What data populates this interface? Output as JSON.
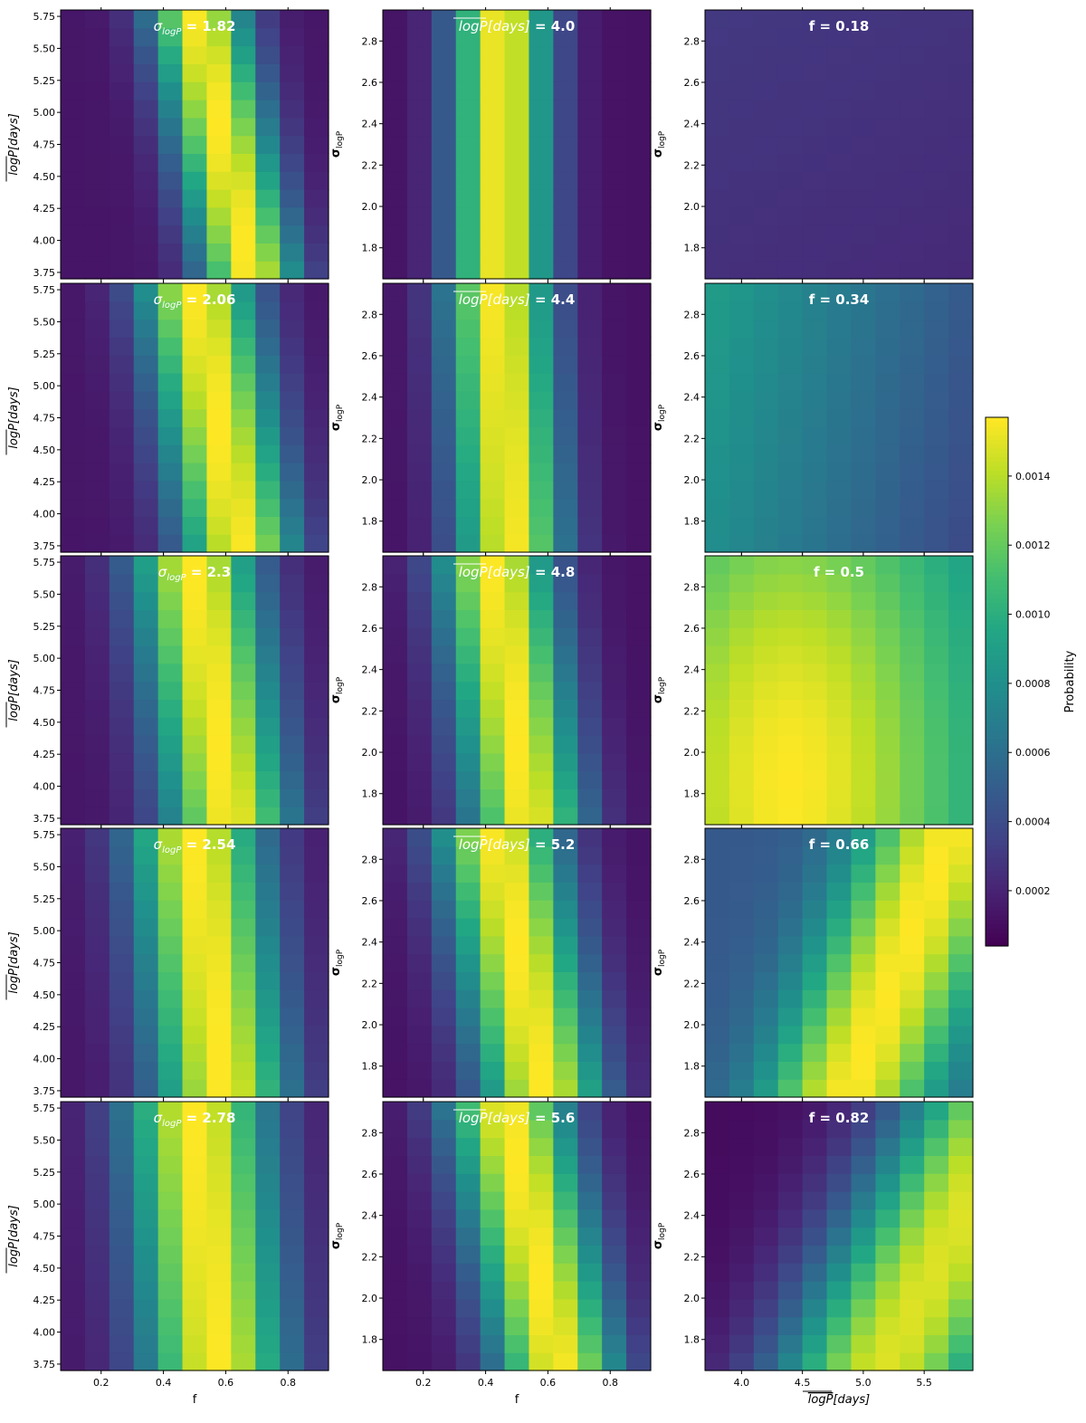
{
  "colorbar": {
    "label": "Probability",
    "vmin": 4e-05,
    "vmax": 0.00157,
    "ticks": [
      "0.0002",
      "0.0004",
      "0.0006",
      "0.0008",
      "0.0010",
      "0.0012",
      "0.0014"
    ],
    "colormap": "viridis"
  },
  "axis_text": {
    "f": "f",
    "sigma_base": "σ",
    "sigma_sub": "logP",
    "logp_bar": "logP",
    "logp_rest": "[days]"
  },
  "chart_data": [
    {
      "type": "heatmap",
      "column": 1,
      "row": 1,
      "title_sym": "σ",
      "title_sub": "logP",
      "title_rest": " = 1.82",
      "x_label": "f",
      "y_label": "logP[days]",
      "x_range": [
        0.07,
        0.93
      ],
      "y_range": [
        3.7,
        5.8
      ],
      "x_ticks": [
        "0.2",
        "0.4",
        "0.6",
        "0.8"
      ],
      "y_ticks": [
        "3.75",
        "4.00",
        "4.25",
        "4.50",
        "4.75",
        "5.00",
        "5.25",
        "5.50",
        "5.75"
      ],
      "pattern": {
        "mode": "band_f_logp",
        "s": 0.6,
        "w": 0.11,
        "slope": 0.3
      },
      "x_tick_labels_shown": false,
      "x_label_shown": false
    },
    {
      "type": "heatmap",
      "column": 1,
      "row": 2,
      "title_sym": "σ",
      "title_sub": "logP",
      "title_rest": " = 2.06",
      "x_label": "f",
      "y_label": "logP[days]",
      "x_range": [
        0.07,
        0.93
      ],
      "y_range": [
        3.7,
        5.8
      ],
      "x_ticks": [
        "0.2",
        "0.4",
        "0.6",
        "0.8"
      ],
      "y_ticks": [
        "3.75",
        "4.00",
        "4.25",
        "4.50",
        "4.75",
        "5.00",
        "5.25",
        "5.50",
        "5.75"
      ],
      "pattern": {
        "mode": "band_f_logp",
        "s": 0.58,
        "w": 0.13,
        "slope": 0.25
      },
      "x_tick_labels_shown": false,
      "x_label_shown": false
    },
    {
      "type": "heatmap",
      "column": 1,
      "row": 3,
      "title_sym": "σ",
      "title_sub": "logP",
      "title_rest": " = 2.3",
      "x_label": "f",
      "y_label": "logP[days]",
      "x_range": [
        0.07,
        0.93
      ],
      "y_range": [
        3.7,
        5.8
      ],
      "x_ticks": [
        "0.2",
        "0.4",
        "0.6",
        "0.8"
      ],
      "y_ticks": [
        "3.75",
        "4.00",
        "4.25",
        "4.50",
        "4.75",
        "5.00",
        "5.25",
        "5.50",
        "5.75"
      ],
      "pattern": {
        "mode": "band_f_logp",
        "s": 0.56,
        "w": 0.14,
        "slope": 0.2
      },
      "x_tick_labels_shown": false,
      "x_label_shown": false
    },
    {
      "type": "heatmap",
      "column": 1,
      "row": 4,
      "title_sym": "σ",
      "title_sub": "logP",
      "title_rest": " = 2.54",
      "x_label": "f",
      "y_label": "logP[days]",
      "x_range": [
        0.07,
        0.93
      ],
      "y_range": [
        3.7,
        5.8
      ],
      "x_ticks": [
        "0.2",
        "0.4",
        "0.6",
        "0.8"
      ],
      "y_ticks": [
        "3.75",
        "4.00",
        "4.25",
        "4.50",
        "4.75",
        "5.00",
        "5.25",
        "5.50",
        "5.75"
      ],
      "pattern": {
        "mode": "band_f_logp",
        "s": 0.55,
        "w": 0.15,
        "slope": 0.16
      },
      "x_tick_labels_shown": false,
      "x_label_shown": false
    },
    {
      "type": "heatmap",
      "column": 1,
      "row": 5,
      "title_sym": "σ",
      "title_sub": "logP",
      "title_rest": " = 2.78",
      "x_label": "f",
      "y_label": "logP[days]",
      "x_range": [
        0.07,
        0.93
      ],
      "y_range": [
        3.7,
        5.8
      ],
      "x_ticks": [
        "0.2",
        "0.4",
        "0.6",
        "0.8"
      ],
      "y_ticks": [
        "3.75",
        "4.00",
        "4.25",
        "4.50",
        "4.75",
        "5.00",
        "5.25",
        "5.50",
        "5.75"
      ],
      "pattern": {
        "mode": "band_f_logp",
        "s": 0.54,
        "w": 0.16,
        "slope": 0.12
      },
      "x_tick_labels_shown": true,
      "x_label_shown": true
    },
    {
      "type": "heatmap",
      "column": 2,
      "row": 1,
      "title_bar": "logP",
      "title_rest": "[days] = 4.0",
      "x_label": "f",
      "y_label": "σ logP",
      "x_range": [
        0.07,
        0.93
      ],
      "y_range": [
        1.65,
        2.95
      ],
      "x_ticks": [
        "0.2",
        "0.4",
        "0.6",
        "0.8"
      ],
      "y_ticks": [
        "1.8",
        "2.0",
        "2.2",
        "2.4",
        "2.6",
        "2.8"
      ],
      "pattern": {
        "mode": "band_f_sigma",
        "s": 0.45,
        "w": 0.11,
        "slope": 0.0
      },
      "x_tick_labels_shown": false,
      "x_label_shown": false
    },
    {
      "type": "heatmap",
      "column": 2,
      "row": 2,
      "title_bar": "logP",
      "title_rest": "[days] = 4.4",
      "x_label": "f",
      "y_label": "σ logP",
      "x_range": [
        0.07,
        0.93
      ],
      "y_range": [
        1.65,
        2.95
      ],
      "x_ticks": [
        "0.2",
        "0.4",
        "0.6",
        "0.8"
      ],
      "y_ticks": [
        "1.8",
        "2.0",
        "2.2",
        "2.4",
        "2.6",
        "2.8"
      ],
      "pattern": {
        "mode": "band_f_sigma",
        "s": 0.48,
        "w": 0.12,
        "slope": -0.04
      },
      "x_tick_labels_shown": false,
      "x_label_shown": false
    },
    {
      "type": "heatmap",
      "column": 2,
      "row": 3,
      "title_bar": "logP",
      "title_rest": "[days] = 4.8",
      "x_label": "f",
      "y_label": "σ logP",
      "x_range": [
        0.07,
        0.93
      ],
      "y_range": [
        1.65,
        2.95
      ],
      "x_ticks": [
        "0.2",
        "0.4",
        "0.6",
        "0.8"
      ],
      "y_ticks": [
        "1.8",
        "2.0",
        "2.2",
        "2.4",
        "2.6",
        "2.8"
      ],
      "pattern": {
        "mode": "band_f_sigma",
        "s": 0.53,
        "w": 0.13,
        "slope": -0.1
      },
      "x_tick_labels_shown": false,
      "x_label_shown": false
    },
    {
      "type": "heatmap",
      "column": 2,
      "row": 4,
      "title_bar": "logP",
      "title_rest": "[days] = 5.2",
      "x_label": "f",
      "y_label": "σ logP",
      "x_range": [
        0.07,
        0.93
      ],
      "y_range": [
        1.65,
        2.95
      ],
      "x_ticks": [
        "0.2",
        "0.4",
        "0.6",
        "0.8"
      ],
      "y_ticks": [
        "1.8",
        "2.0",
        "2.2",
        "2.4",
        "2.6",
        "2.8"
      ],
      "pattern": {
        "mode": "band_f_sigma",
        "s": 0.58,
        "w": 0.14,
        "slope": -0.14
      },
      "x_tick_labels_shown": false,
      "x_label_shown": false
    },
    {
      "type": "heatmap",
      "column": 2,
      "row": 5,
      "title_bar": "logP",
      "title_rest": "[days] = 5.6",
      "x_label": "f",
      "y_label": "σ logP",
      "x_range": [
        0.07,
        0.93
      ],
      "y_range": [
        1.65,
        2.95
      ],
      "x_ticks": [
        "0.2",
        "0.4",
        "0.6",
        "0.8"
      ],
      "y_ticks": [
        "1.8",
        "2.0",
        "2.2",
        "2.4",
        "2.6",
        "2.8"
      ],
      "pattern": {
        "mode": "band_f_sigma",
        "s": 0.63,
        "w": 0.14,
        "slope": -0.16
      },
      "x_tick_labels_shown": true,
      "x_label_shown": true
    },
    {
      "type": "heatmap",
      "column": 3,
      "row": 1,
      "title_plain": "f = 0.18",
      "x_label": "logP[days]",
      "y_label": "σ logP",
      "x_range": [
        3.7,
        5.9
      ],
      "y_range": [
        1.65,
        2.95
      ],
      "x_ticks": [
        "4.0",
        "4.5",
        "5.0",
        "5.5"
      ],
      "y_ticks": [
        "1.8",
        "2.0",
        "2.2",
        "2.4",
        "2.6",
        "2.8"
      ],
      "pattern": {
        "mode": "flat",
        "level": 0.14,
        "gx": -0.02,
        "gy": 0.03
      },
      "x_tick_labels_shown": false,
      "x_label_shown": false
    },
    {
      "type": "heatmap",
      "column": 3,
      "row": 2,
      "title_plain": "f = 0.34",
      "x_label": "logP[days]",
      "y_label": "σ logP",
      "x_range": [
        3.7,
        5.9
      ],
      "y_range": [
        1.65,
        2.95
      ],
      "x_ticks": [
        "4.0",
        "4.5",
        "5.0",
        "5.5"
      ],
      "y_ticks": [
        "1.8",
        "2.0",
        "2.2",
        "2.4",
        "2.6",
        "2.8"
      ],
      "pattern": {
        "mode": "flat",
        "level": 0.5,
        "gx": -0.28,
        "gy": 0.06
      },
      "x_tick_labels_shown": false,
      "x_label_shown": false
    },
    {
      "type": "heatmap",
      "column": 3,
      "row": 3,
      "title_plain": "f = 0.5",
      "x_label": "logP[days]",
      "y_label": "σ logP",
      "x_range": [
        3.7,
        5.9
      ],
      "y_range": [
        1.65,
        2.95
      ],
      "x_ticks": [
        "4.0",
        "4.5",
        "5.0",
        "5.5"
      ],
      "y_ticks": [
        "1.8",
        "2.0",
        "2.2",
        "2.4",
        "2.6",
        "2.8"
      ],
      "pattern": {
        "mode": "blob",
        "cx": 4.4,
        "cy": 1.85,
        "sx": 1.0,
        "sy": 1.2,
        "lo": 0.45,
        "hi": 1.0
      },
      "x_tick_labels_shown": false,
      "x_label_shown": false
    },
    {
      "type": "heatmap",
      "column": 3,
      "row": 4,
      "title_plain": "f = 0.66",
      "x_label": "logP[days]",
      "y_label": "σ logP",
      "x_range": [
        3.7,
        5.9
      ],
      "y_range": [
        1.65,
        2.95
      ],
      "x_ticks": [
        "4.0",
        "4.5",
        "5.0",
        "5.5"
      ],
      "y_ticks": [
        "1.8",
        "2.0",
        "2.2",
        "2.4",
        "2.6",
        "2.8"
      ],
      "pattern": {
        "mode": "ridge",
        "x0": 4.9,
        "y0": 1.7,
        "dx": 0.6,
        "dy": 0.9,
        "w": 0.42,
        "lo": 0.28,
        "hi": 1.0
      },
      "x_tick_labels_shown": false,
      "x_label_shown": false
    },
    {
      "type": "heatmap",
      "column": 3,
      "row": 5,
      "title_plain": "f = 0.82",
      "x_label": "logP[days]",
      "y_label": "σ logP",
      "x_range": [
        3.7,
        5.9
      ],
      "y_range": [
        1.65,
        2.95
      ],
      "x_ticks": [
        "4.0",
        "4.5",
        "5.0",
        "5.5"
      ],
      "y_ticks": [
        "1.8",
        "2.0",
        "2.2",
        "2.4",
        "2.6",
        "2.8"
      ],
      "pattern": {
        "mode": "ridge",
        "x0": 5.2,
        "y0": 1.7,
        "dx": 0.7,
        "dy": 0.8,
        "w": 0.5,
        "lo": 0.03,
        "hi": 0.95
      },
      "x_tick_labels_shown": true,
      "x_label_shown": true
    }
  ]
}
